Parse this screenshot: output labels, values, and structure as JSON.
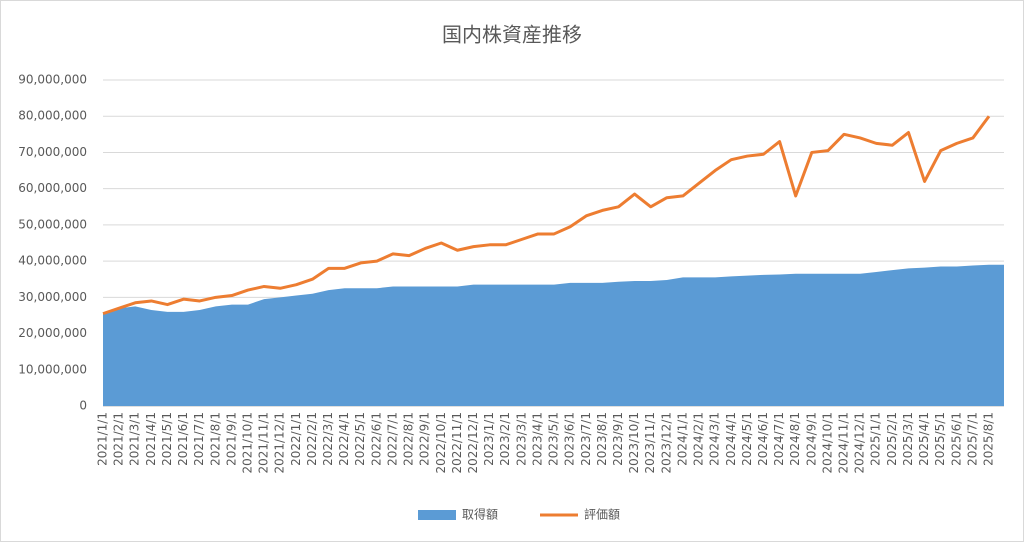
{
  "chart_data": {
    "type": "area-line",
    "title": "国内株資産推移",
    "categories": [
      "2021/1/1",
      "2021/2/1",
      "2021/3/1",
      "2021/4/1",
      "2021/5/1",
      "2021/6/1",
      "2021/7/1",
      "2021/8/1",
      "2021/9/1",
      "2021/10/1",
      "2021/11/1",
      "2021/12/1",
      "2022/1/1",
      "2022/2/1",
      "2022/3/1",
      "2022/4/1",
      "2022/5/1",
      "2022/6/1",
      "2022/7/1",
      "2022/8/1",
      "2022/9/1",
      "2022/10/1",
      "2022/11/1",
      "2022/12/1",
      "2023/1/1",
      "2023/2/1",
      "2023/3/1",
      "2023/4/1",
      "2023/5/1",
      "2023/6/1",
      "2023/7/1",
      "2023/8/1",
      "2023/9/1",
      "2023/10/1",
      "2023/11/1",
      "2023/12/1",
      "2024/1/1",
      "2024/2/1",
      "2024/3/1",
      "2024/4/1",
      "2024/5/1",
      "2024/6/1",
      "2024/7/1",
      "2024/8/1",
      "2024/9/1",
      "2024/10/1",
      "2024/11/1",
      "2024/12/1",
      "2025/1/1",
      "2025/2/1",
      "2025/3/1",
      "2025/4/1",
      "2025/5/1",
      "2025/6/1",
      "2025/7/1",
      "2025/8/1"
    ],
    "series": [
      {
        "name": "取得額",
        "kind": "area",
        "color": "#5b9bd5",
        "values": [
          25500000,
          27000000,
          27500000,
          26500000,
          26000000,
          26000000,
          26500000,
          27500000,
          28000000,
          28000000,
          29500000,
          30000000,
          30500000,
          31000000,
          32000000,
          32500000,
          32500000,
          32500000,
          33000000,
          33000000,
          33000000,
          33000000,
          33000000,
          33500000,
          33500000,
          33500000,
          33500000,
          33500000,
          33500000,
          34000000,
          34000000,
          34000000,
          34300000,
          34500000,
          34500000,
          34800000,
          35500000,
          35500000,
          35500000,
          35800000,
          36000000,
          36200000,
          36300000,
          36500000,
          36500000,
          36500000,
          36500000,
          36500000,
          37000000,
          37500000,
          38000000,
          38200000,
          38500000,
          38500000,
          38800000,
          39000000
        ]
      },
      {
        "name": "評価額",
        "kind": "line",
        "color": "#ed7d31",
        "values": [
          25500000,
          27000000,
          28500000,
          29000000,
          28000000,
          29500000,
          29000000,
          30000000,
          30500000,
          32000000,
          33000000,
          32500000,
          33500000,
          35000000,
          38000000,
          38000000,
          39500000,
          40000000,
          42000000,
          41500000,
          43500000,
          45000000,
          43000000,
          44000000,
          44500000,
          44500000,
          46000000,
          47500000,
          47500000,
          49500000,
          52500000,
          54000000,
          55000000,
          58500000,
          55000000,
          57500000,
          58000000,
          61500000,
          65000000,
          68000000,
          69000000,
          69500000,
          73000000,
          58000000,
          70000000,
          70500000,
          75000000,
          74000000,
          72500000,
          72000000,
          75500000,
          62000000,
          70500000,
          72500000,
          74000000,
          80000000
        ]
      }
    ],
    "ylim": [
      0,
      90000000
    ],
    "yticks": [
      0,
      {
        "value": 10000000,
        "label": "10,000,000"
      },
      {
        "value": 20000000,
        "label": "20,000,000"
      },
      {
        "value": 30000000,
        "label": "30,000,000"
      },
      {
        "value": 40000000,
        "label": "40,000,000"
      },
      {
        "value": 50000000,
        "label": "50,000,000"
      },
      {
        "value": 60000000,
        "label": "60,000,000"
      },
      {
        "value": 70000000,
        "label": "70,000,000"
      },
      {
        "value": 80000000,
        "label": "80,000,000"
      },
      {
        "value": 90000000,
        "label": "90,000,000"
      }
    ],
    "grid": true
  }
}
